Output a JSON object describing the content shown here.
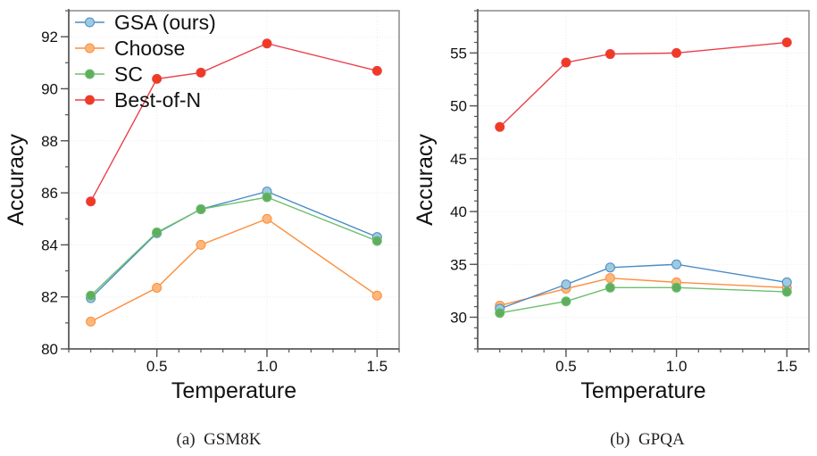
{
  "chart_data": [
    {
      "type": "line",
      "caption": "(a)  GSM8K",
      "title": "",
      "xlabel": "Temperature",
      "ylabel": "Accuracy",
      "xlim": [
        0.1,
        1.6
      ],
      "ylim": [
        80,
        93
      ],
      "x_ticks": [
        0.5,
        1.0,
        1.5
      ],
      "x_tick_labels": [
        "0.5",
        "1.0",
        "1.5"
      ],
      "x_minor_step": 0.1,
      "y_ticks": [
        80,
        82,
        84,
        86,
        88,
        90,
        92
      ],
      "y_tick_labels": [
        "80",
        "82",
        "84",
        "86",
        "88",
        "90",
        "92"
      ],
      "y_minor_step": 1,
      "grid": true,
      "legend": "top-left",
      "x": [
        0.2,
        0.5,
        0.7,
        1.0,
        1.5
      ],
      "series": [
        {
          "name": "GSA (ours)",
          "values": [
            81.95,
            84.45,
            85.37,
            86.05,
            84.3
          ],
          "line_color": "#4a8cc4",
          "marker_color": "#9ecae1"
        },
        {
          "name": "Choose",
          "values": [
            81.05,
            82.35,
            84.0,
            85.0,
            82.05
          ],
          "line_color": "#fd8d3c",
          "marker_color": "#fdb77a"
        },
        {
          "name": "SC",
          "values": [
            82.05,
            84.48,
            85.37,
            85.83,
            84.15
          ],
          "line_color": "#6cbf6c",
          "marker_color": "#5fae5f"
        },
        {
          "name": "Best-of-N",
          "values": [
            85.67,
            90.38,
            90.62,
            91.74,
            90.69
          ],
          "line_color": "#e8404a",
          "marker_color": "#f03b20"
        }
      ]
    },
    {
      "type": "line",
      "caption": "(b)  GPQA",
      "title": "",
      "xlabel": "Temperature",
      "ylabel": "Accuracy",
      "xlim": [
        0.1,
        1.6
      ],
      "ylim": [
        27,
        59
      ],
      "x_ticks": [
        0.5,
        1.0,
        1.5
      ],
      "x_tick_labels": [
        "0.5",
        "1.0",
        "1.5"
      ],
      "x_minor_step": 0.1,
      "y_ticks": [
        30,
        35,
        40,
        45,
        50,
        55
      ],
      "y_tick_labels": [
        "30",
        "35",
        "40",
        "45",
        "50",
        "55"
      ],
      "y_minor_step": 1,
      "grid": true,
      "legend": "none",
      "x": [
        0.2,
        0.5,
        0.7,
        1.0,
        1.5
      ],
      "series": [
        {
          "name": "GSA (ours)",
          "values": [
            30.8,
            33.1,
            34.7,
            35.0,
            33.3
          ],
          "line_color": "#4a8cc4",
          "marker_color": "#9ecae1"
        },
        {
          "name": "Choose",
          "values": [
            31.1,
            32.7,
            33.7,
            33.3,
            32.8
          ],
          "line_color": "#fd8d3c",
          "marker_color": "#fdb77a"
        },
        {
          "name": "SC",
          "values": [
            30.4,
            31.5,
            32.8,
            32.8,
            32.4
          ],
          "line_color": "#6cbf6c",
          "marker_color": "#5fae5f"
        },
        {
          "name": "Best-of-N",
          "values": [
            48.0,
            54.1,
            54.9,
            55.0,
            56.0
          ],
          "line_color": "#e8404a",
          "marker_color": "#f03b20"
        }
      ]
    }
  ]
}
